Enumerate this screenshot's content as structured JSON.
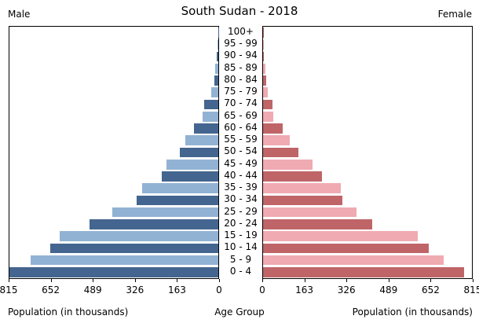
{
  "header": {
    "title": "South Sudan - 2018",
    "left_label": "Male",
    "right_label": "Female"
  },
  "axis": {
    "left_ticks": [
      815,
      652,
      489,
      326,
      163,
      0
    ],
    "right_ticks": [
      0,
      163,
      326,
      489,
      652,
      815
    ],
    "left_axis_label": "Population (in thousands)",
    "center_axis_label": "Age Group",
    "right_axis_label": "Population (in thousands)"
  },
  "colors": {
    "male_dark": "#44658f",
    "male_light": "#92b2d4",
    "female_dark": "#bf6568",
    "female_light": "#f0aab1",
    "axis": "#000000",
    "background": "#ffffff"
  },
  "chart_data": {
    "type": "bar",
    "subtype": "population-pyramid",
    "title": "South Sudan - 2018",
    "xlabel_left": "Population (in thousands)",
    "xlabel_right": "Population (in thousands)",
    "center_label": "Age Group",
    "units": "thousands",
    "xlim": [
      0,
      815
    ],
    "grid": false,
    "categories": [
      "0 - 4",
      "5 - 9",
      "10 - 14",
      "15 - 19",
      "20 - 24",
      "25 - 29",
      "30 - 34",
      "35 - 39",
      "40 - 44",
      "45 - 49",
      "50 - 54",
      "55 - 59",
      "60 - 64",
      "65 - 69",
      "70 - 74",
      "75 - 79",
      "80 - 84",
      "85 - 89",
      "90 - 94",
      "95 - 99",
      "100+"
    ],
    "series": [
      {
        "name": "Male",
        "side": "left",
        "values": [
          815,
          732,
          656,
          620,
          501,
          413,
          319,
          296,
          220,
          202,
          151,
          128,
          95,
          62,
          55,
          29,
          16,
          11,
          5,
          3,
          1
        ]
      },
      {
        "name": "Female",
        "side": "right",
        "values": [
          783,
          706,
          645,
          605,
          426,
          365,
          310,
          302,
          229,
          192,
          139,
          105,
          77,
          41,
          37,
          18,
          12,
          8,
          4,
          2,
          1
        ]
      }
    ]
  }
}
